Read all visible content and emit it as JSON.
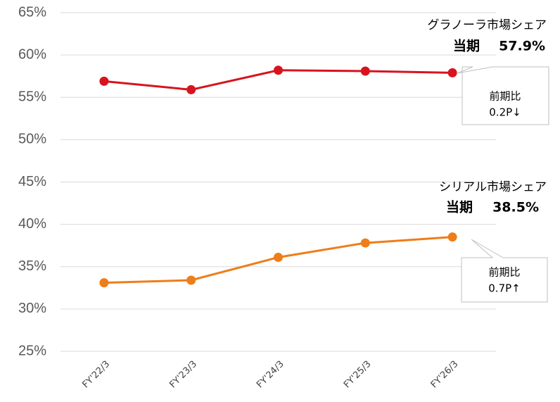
{
  "chart_data": {
    "type": "line",
    "categories": [
      "FY'22/3",
      "FY'23/3",
      "FY'24/3",
      "FY'25/3",
      "FY'26/3"
    ],
    "ylim": [
      25,
      65
    ],
    "yticks": [
      {
        "value": 25,
        "label": "25%"
      },
      {
        "value": 30,
        "label": "30%"
      },
      {
        "value": 35,
        "label": "35%"
      },
      {
        "value": 40,
        "label": "40%"
      },
      {
        "value": 45,
        "label": "45%"
      },
      {
        "value": 50,
        "label": "50%"
      },
      {
        "value": 55,
        "label": "55%"
      },
      {
        "value": 60,
        "label": "60%"
      },
      {
        "value": 65,
        "label": "65%"
      }
    ],
    "grid": true,
    "series": [
      {
        "name": "グラノーラ市場シェア",
        "color": "#d7141e",
        "values": [
          56.9,
          55.9,
          58.2,
          58.1,
          57.9
        ],
        "current_label": "当期",
        "current_value_label": "57.9%",
        "change_label": "前期比",
        "change_value_label": "0.2P↓"
      },
      {
        "name": "シリアル市場シェア",
        "color": "#ee7d1a",
        "values": [
          33.1,
          33.4,
          36.1,
          37.8,
          38.5
        ],
        "current_label": "当期",
        "current_value_label": "38.5%",
        "change_label": "前期比",
        "change_value_label": "0.7P↑"
      }
    ]
  }
}
